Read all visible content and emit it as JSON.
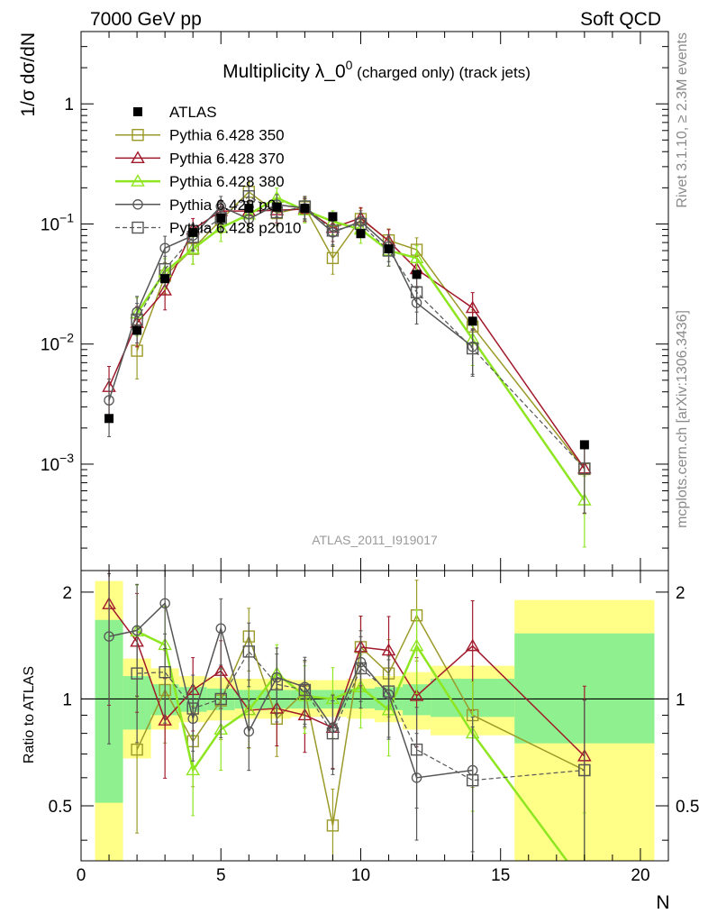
{
  "header": {
    "left": "7000 GeV pp",
    "right": "Soft QCD"
  },
  "side_labels": {
    "rivet": "Rivet 3.1.10, ≥ 2.3M events",
    "mcplots": "mcplots.cern.ch [arXiv:1306.3436]"
  },
  "chart_data": {
    "type": "line",
    "title": "Multiplicity λ_0⁰ (charged only) (track jets)",
    "title_parts": {
      "main": "Multiplicity λ_0",
      "sup": "0",
      "suffix": " (charged only) (track jets)"
    },
    "watermark": "ATLAS_2011_I919017",
    "ylabel": "1/σ dσ/dN",
    "xlabel": "N",
    "ratio_ylabel": "Ratio to ATLAS",
    "xlim": [
      0,
      21
    ],
    "ylim": [
      0.00013,
      4
    ],
    "yscale": "log",
    "ratio_ylim": [
      0.35,
      2.3
    ],
    "x_ticks": [
      "0",
      "5",
      "10",
      "15",
      "20"
    ],
    "y_ticks": [
      "10⁻³",
      "10⁻²",
      "10⁻¹",
      "1"
    ],
    "ratio_ticks": [
      "0.5",
      "1",
      "2"
    ],
    "legend_position": "top-left",
    "data": {
      "name": "ATLAS",
      "color": "#000000",
      "x": [
        1,
        2,
        3,
        4,
        5,
        6,
        7,
        8,
        9,
        10,
        11,
        12,
        14,
        18
      ],
      "y": [
        0.0024,
        0.013,
        0.035,
        0.085,
        0.112,
        0.135,
        0.138,
        0.135,
        0.115,
        0.083,
        0.062,
        0.038,
        0.0155,
        0.00145
      ]
    },
    "ratio_bands": [
      {
        "x0": 0.5,
        "x1": 1.5,
        "y_lo": 0.34,
        "y_hi": 2.15,
        "g_lo": 0.51,
        "g_hi": 1.67
      },
      {
        "x0": 1.5,
        "x1": 2.5,
        "y_lo": 0.68,
        "y_hi": 1.3,
        "g_lo": 0.82,
        "g_hi": 1.16
      },
      {
        "x0": 2.5,
        "x1": 3.5,
        "y_lo": 0.82,
        "y_hi": 1.22,
        "g_lo": 0.9,
        "g_hi": 1.1
      },
      {
        "x0": 3.5,
        "x1": 4.5,
        "y_lo": 0.86,
        "y_hi": 1.16,
        "g_lo": 0.92,
        "g_hi": 1.08
      },
      {
        "x0": 4.5,
        "x1": 5.5,
        "y_lo": 0.87,
        "y_hi": 1.15,
        "g_lo": 0.93,
        "g_hi": 1.07
      },
      {
        "x0": 5.5,
        "x1": 6.5,
        "y_lo": 0.88,
        "y_hi": 1.14,
        "g_lo": 0.94,
        "g_hi": 1.06
      },
      {
        "x0": 6.5,
        "x1": 7.5,
        "y_lo": 0.88,
        "y_hi": 1.14,
        "g_lo": 0.94,
        "g_hi": 1.06
      },
      {
        "x0": 7.5,
        "x1": 8.5,
        "y_lo": 0.89,
        "y_hi": 1.13,
        "g_lo": 0.94,
        "g_hi": 1.06
      },
      {
        "x0": 8.5,
        "x1": 9.5,
        "y_lo": 0.89,
        "y_hi": 1.13,
        "g_lo": 0.94,
        "g_hi": 1.06
      },
      {
        "x0": 9.5,
        "x1": 10.5,
        "y_lo": 0.88,
        "y_hi": 1.14,
        "g_lo": 0.94,
        "g_hi": 1.07
      },
      {
        "x0": 10.5,
        "x1": 11.5,
        "y_lo": 0.86,
        "y_hi": 1.16,
        "g_lo": 0.93,
        "g_hi": 1.08
      },
      {
        "x0": 11.5,
        "x1": 12.5,
        "y_lo": 0.82,
        "y_hi": 1.19,
        "g_lo": 0.9,
        "g_hi": 1.1
      },
      {
        "x0": 12.5,
        "x1": 15.5,
        "y_lo": 0.79,
        "y_hi": 1.24,
        "g_lo": 0.89,
        "g_hi": 1.14
      },
      {
        "x0": 15.5,
        "x1": 20.5,
        "y_lo": 0.3,
        "y_hi": 1.9,
        "g_lo": 0.75,
        "g_hi": 1.53
      }
    ],
    "series": [
      {
        "name": "Pythia 6.428 350",
        "color": "#9b9a29",
        "marker": "square-open",
        "dash": "",
        "width": 1.5,
        "x": [
          2,
          3,
          4,
          5,
          6,
          7,
          8,
          9,
          10,
          11,
          12,
          14,
          18
        ],
        "y": [
          0.0088,
          0.037,
          0.062,
          0.108,
          0.185,
          0.123,
          0.138,
          0.052,
          0.11,
          0.073,
          0.061,
          0.014,
          0.00091
        ],
        "ratio": [
          0.72,
          1.06,
          0.76,
          0.99,
          1.5,
          0.88,
          1.05,
          0.44,
          1.4,
          1.18,
          1.72,
          0.9,
          0.63
        ]
      },
      {
        "name": "Pythia 6.428 370",
        "color": "#a1182a",
        "marker": "triangle-open",
        "dash": "",
        "width": 1.5,
        "x": [
          1,
          2,
          3,
          4,
          5,
          6,
          7,
          8,
          9,
          10,
          11,
          12,
          14,
          18
        ],
        "y": [
          0.0044,
          0.015,
          0.028,
          0.09,
          0.128,
          0.128,
          0.13,
          0.133,
          0.093,
          0.112,
          0.072,
          0.042,
          0.02,
          0.00092
        ],
        "ratio": [
          1.85,
          1.45,
          0.87,
          1.06,
          1.2,
          0.93,
          0.94,
          0.9,
          0.83,
          1.4,
          1.37,
          1.02,
          1.41,
          0.69
        ]
      },
      {
        "name": "Pythia 6.428 380",
        "color": "#8ee620",
        "marker": "triangle-open",
        "dash": "",
        "width": 2.5,
        "x": [
          2,
          3,
          4,
          5,
          6,
          7,
          8,
          9,
          10,
          11,
          12,
          14,
          18
        ],
        "y": [
          0.018,
          0.04,
          0.062,
          0.093,
          0.12,
          0.165,
          0.13,
          0.105,
          0.09,
          0.06,
          0.052,
          0.011,
          0.0005
        ],
        "ratio": [
          1.55,
          1.42,
          0.63,
          0.82,
          0.93,
          1.18,
          1.02,
          1.0,
          1.08,
          0.93,
          1.41,
          0.8,
          0.3
        ]
      },
      {
        "name": "Pythia 6.428 p0",
        "color": "#555555",
        "marker": "circle-open",
        "dash": "",
        "width": 1.5,
        "x": [
          1,
          2,
          3,
          4,
          5,
          6,
          7,
          8,
          9,
          10,
          11,
          12,
          14
        ],
        "y": [
          0.0034,
          0.0185,
          0.063,
          0.08,
          0.14,
          0.11,
          0.145,
          0.135,
          0.085,
          0.105,
          0.065,
          0.022,
          0.0095
        ],
        "ratio": [
          1.5,
          1.56,
          1.86,
          0.88,
          1.58,
          0.81,
          1.15,
          1.08,
          0.83,
          1.27,
          1.03,
          0.6,
          0.63
        ]
      },
      {
        "name": "Pythia 6.428 p2010",
        "color": "#555555",
        "marker": "square-open",
        "dash": "5,3",
        "width": 1.2,
        "x": [
          2,
          3,
          4,
          5,
          6,
          7,
          8,
          9,
          10,
          11,
          12,
          14,
          18
        ],
        "y": [
          0.016,
          0.042,
          0.078,
          0.112,
          0.17,
          0.125,
          0.14,
          0.088,
          0.1,
          0.06,
          0.027,
          0.0092,
          0.00092
        ],
        "ratio": [
          1.18,
          1.19,
          0.94,
          1.0,
          1.36,
          1.1,
          1.06,
          0.8,
          1.22,
          1.05,
          0.72,
          0.59,
          0.63
        ]
      }
    ]
  }
}
